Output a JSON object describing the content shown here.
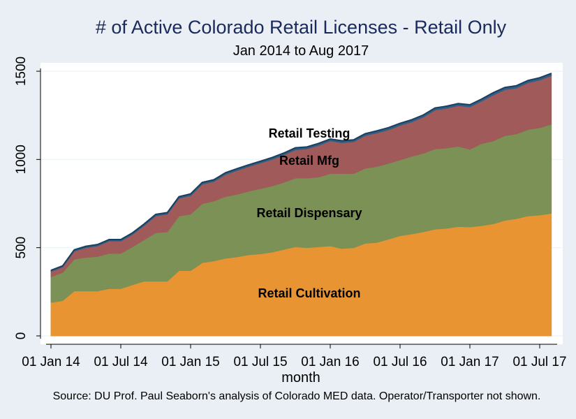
{
  "chart_data": {
    "type": "area",
    "stacked": true,
    "title": "# of Active Colorado Retail Licenses - Retail Only",
    "subtitle": "Jan 2014 to Aug 2017",
    "xlabel": "month",
    "ylabel": "",
    "ylim": [
      0,
      1500
    ],
    "yticks": [
      0,
      500,
      1000,
      1500
    ],
    "xtick_labels": [
      "01 Jan 14",
      "01 Jul 14",
      "01 Jan 15",
      "01 Jul 15",
      "01 Jan 16",
      "01 Jul 16",
      "01 Jan 17",
      "01 Jul 17"
    ],
    "grid": true,
    "note": "Source: DU Prof. Paul Seaborn's analysis of Colorado MED data. Operator/Transporter not shown.",
    "x": [
      "2014-01",
      "2014-02",
      "2014-03",
      "2014-04",
      "2014-05",
      "2014-06",
      "2014-07",
      "2014-08",
      "2014-09",
      "2014-10",
      "2014-11",
      "2014-12",
      "2015-01",
      "2015-02",
      "2015-03",
      "2015-04",
      "2015-05",
      "2015-06",
      "2015-07",
      "2015-08",
      "2015-09",
      "2015-10",
      "2015-11",
      "2015-12",
      "2016-01",
      "2016-02",
      "2016-03",
      "2016-04",
      "2016-05",
      "2016-06",
      "2016-07",
      "2016-08",
      "2016-09",
      "2016-10",
      "2016-11",
      "2016-12",
      "2017-01",
      "2017-02",
      "2017-03",
      "2017-04",
      "2017-05",
      "2017-06",
      "2017-07",
      "2017-08"
    ],
    "series": [
      {
        "name": "Retail Cultivation",
        "color": "#e99433",
        "label_color": "#000000",
        "values": [
          190,
          200,
          255,
          255,
          255,
          268,
          268,
          290,
          310,
          310,
          310,
          370,
          370,
          415,
          425,
          440,
          448,
          460,
          465,
          475,
          490,
          505,
          500,
          505,
          510,
          495,
          500,
          525,
          530,
          548,
          568,
          578,
          590,
          605,
          610,
          620,
          618,
          625,
          635,
          655,
          665,
          680,
          685,
          695
        ]
      },
      {
        "name": "Retail Dispensary",
        "color": "#7b9155",
        "label_color": "#000000",
        "values": [
          145,
          160,
          180,
          190,
          195,
          200,
          200,
          215,
          235,
          275,
          280,
          310,
          320,
          335,
          340,
          350,
          355,
          360,
          370,
          375,
          380,
          390,
          395,
          395,
          410,
          425,
          420,
          425,
          430,
          430,
          430,
          440,
          445,
          455,
          455,
          455,
          440,
          465,
          470,
          480,
          480,
          490,
          495,
          505
        ]
      },
      {
        "name": "Retail Mfg",
        "color": "#a05a5a",
        "label_color": "#000000",
        "values": [
          30,
          30,
          45,
          55,
          60,
          70,
          70,
          70,
          80,
          95,
          100,
          100,
          105,
          110,
          110,
          125,
          135,
          140,
          145,
          150,
          155,
          160,
          165,
          180,
          185,
          175,
          180,
          185,
          190,
          190,
          195,
          195,
          205,
          220,
          225,
          230,
          240,
          240,
          260,
          260,
          260,
          265,
          270,
          275
        ]
      },
      {
        "name": "Retail Testing",
        "color": "#2f5f86",
        "label_color": "#000000",
        "values": [
          7,
          7,
          8,
          8,
          8,
          8,
          8,
          9,
          9,
          9,
          9,
          9,
          10,
          10,
          10,
          10,
          10,
          10,
          10,
          11,
          11,
          11,
          11,
          11,
          11,
          11,
          11,
          11,
          12,
          12,
          12,
          12,
          12,
          12,
          12,
          12,
          12,
          12,
          13,
          13,
          13,
          13,
          13,
          13
        ]
      }
    ]
  }
}
